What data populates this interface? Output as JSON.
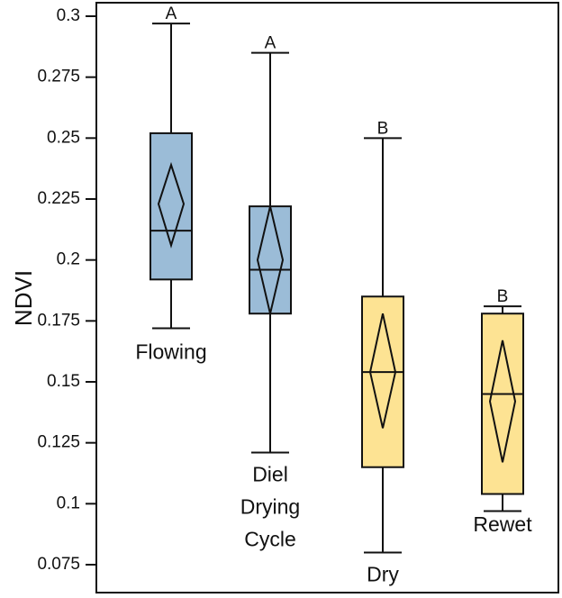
{
  "chart_data": {
    "type": "box",
    "ylabel": "NDVI",
    "ylim": [
      0.07,
      0.3
    ],
    "yticks": [
      "0.3",
      "0.275",
      "0.25",
      "0.225",
      "0.2",
      "0.175",
      "0.15",
      "0.125",
      "0.1",
      "0.075"
    ],
    "ytick_values": [
      0.3,
      0.275,
      0.25,
      0.225,
      0.2,
      0.175,
      0.15,
      0.125,
      0.1,
      0.075
    ],
    "grid": false,
    "series": [
      {
        "name": "Flowing",
        "label_lines": [
          "Flowing"
        ],
        "group": "A",
        "color": "#9bbcd7",
        "whisker_low": 0.172,
        "q1": 0.192,
        "median": 0.212,
        "q3": 0.252,
        "whisker_high": 0.297,
        "mean": 0.223,
        "ci_low": 0.206,
        "ci_high": 0.239
      },
      {
        "name": "Diel Drying Cycle",
        "label_lines": [
          "Diel",
          "Drying",
          "Cycle"
        ],
        "group": "A",
        "color": "#9bbcd7",
        "whisker_low": 0.121,
        "q1": 0.178,
        "median": 0.196,
        "q3": 0.222,
        "whisker_high": 0.285,
        "mean": 0.2,
        "ci_low": 0.178,
        "ci_high": 0.222
      },
      {
        "name": "Dry",
        "label_lines": [
          "Dry"
        ],
        "group": "B",
        "color": "#fde393",
        "whisker_low": 0.08,
        "q1": 0.115,
        "median": 0.154,
        "q3": 0.185,
        "whisker_high": 0.25,
        "mean": 0.154,
        "ci_low": 0.131,
        "ci_high": 0.178
      },
      {
        "name": "Rewet",
        "label_lines": [
          "Rewet"
        ],
        "group": "B",
        "color": "#fde393",
        "whisker_low": 0.097,
        "q1": 0.104,
        "median": 0.145,
        "q3": 0.178,
        "whisker_high": 0.181,
        "mean": 0.142,
        "ci_low": 0.117,
        "ci_high": 0.167
      }
    ]
  }
}
